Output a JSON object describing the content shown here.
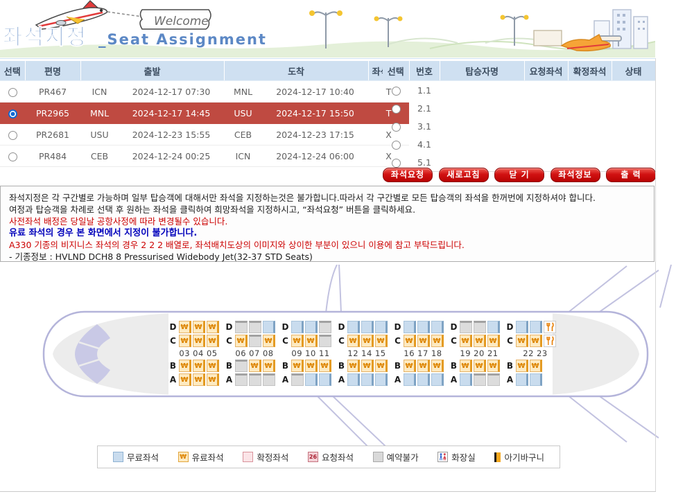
{
  "banner": {
    "title_ko": "좌석지정",
    "title_en": "_Seat Assignment",
    "welcome": "Welcome"
  },
  "flights": {
    "columns": {
      "select": "선택",
      "flight": "편명",
      "departure": "출발",
      "arrival": "도착",
      "seat_info": "좌석정보"
    },
    "rows": [
      {
        "flight": "PR467",
        "dep_city": "ICN",
        "dep_time": "2024-12-17 07:30",
        "arr_city": "MNL",
        "arr_time": "2024-12-17 10:40",
        "seat_info": "T",
        "selected": false
      },
      {
        "flight": "PR2965",
        "dep_city": "MNL",
        "dep_time": "2024-12-17 14:45",
        "arr_city": "USU",
        "arr_time": "2024-12-17 15:50",
        "seat_info": "T",
        "selected": true
      },
      {
        "flight": "PR2681",
        "dep_city": "USU",
        "dep_time": "2024-12-23 15:55",
        "arr_city": "CEB",
        "arr_time": "2024-12-23 17:15",
        "seat_info": "X",
        "selected": false
      },
      {
        "flight": "PR484",
        "dep_city": "CEB",
        "dep_time": "2024-12-24 00:25",
        "arr_city": "ICN",
        "arr_time": "2024-12-24 06:00",
        "seat_info": "X",
        "selected": false
      }
    ],
    "selected_row_color": "#bf4a41"
  },
  "passengers": {
    "columns": {
      "select": "선택",
      "number": "번호",
      "name": "탑승자명",
      "requested_seat": "요청좌석",
      "confirmed_seat": "확정좌석",
      "status": "상태"
    },
    "rows": [
      {
        "number": "1.1",
        "name": "",
        "requested_seat": "",
        "confirmed_seat": "",
        "status": ""
      },
      {
        "number": "2.1",
        "name": "",
        "requested_seat": "",
        "confirmed_seat": "",
        "status": ""
      },
      {
        "number": "3.1",
        "name": "",
        "requested_seat": "",
        "confirmed_seat": "",
        "status": ""
      },
      {
        "number": "4.1",
        "name": "",
        "requested_seat": "",
        "confirmed_seat": "",
        "status": ""
      },
      {
        "number": "5.1",
        "name": "",
        "requested_seat": "",
        "confirmed_seat": "",
        "status": ""
      }
    ]
  },
  "buttons": [
    {
      "id": "seat-request-button",
      "label": "좌석요청"
    },
    {
      "id": "refresh-button",
      "label": "새로고침"
    },
    {
      "id": "close-button",
      "label": "닫 기"
    },
    {
      "id": "seat-info-button",
      "label": "좌석정보"
    },
    {
      "id": "print-button",
      "label": "출 력"
    }
  ],
  "notice": {
    "lines": [
      {
        "text": "좌석지정은 각 구간별로 가능하며 일부 탑승객에 대해서만 좌석을 지정하는것은 불가합니다.따라서 각 구간별로 모든 탑승객의 좌석을 한꺼번에 지정하셔야 합니다.",
        "color": "black"
      },
      {
        "text": "여정과 탑승객을 차례로 선택 후 원하는 좌석을 클릭하여 희망좌석을 지정하시고, “좌석요청” 버튼을 클릭하세요.",
        "color": "black"
      },
      {
        "text": "사전좌석 배정은 당일날 공항사정에 따라 변경될수 있습니다.",
        "color": "red"
      },
      {
        "text": "유료 좌석의 경우 본 화면에서 지정이 불가합니다.",
        "color": "blue"
      },
      {
        "text": "A330 기종의 비지니스 좌석의 경우 2 2 2 배열로, 좌석배치도상의 이미지와 상이한 부분이 있으니 이용에 참고 부탁드립니다.",
        "color": "red"
      },
      {
        "text": "- 기종정보 : HVLND DCH8 8 Pressurised Widebody Jet(32-37 STD Seats)",
        "color": "black"
      }
    ]
  },
  "seat_map": {
    "paid_symbol": "₩",
    "groups": [
      {
        "numbers": "03 04 05",
        "D": [
          "P",
          "P",
          "P"
        ],
        "C": [
          "P",
          "P",
          "P"
        ],
        "B": [
          "P",
          "P",
          "P"
        ],
        "A": [
          "P",
          "P",
          "P"
        ],
        "lav_D": false,
        "lav_C": false
      },
      {
        "numbers": "06 07 08",
        "D": [
          "X",
          "X",
          "F"
        ],
        "C": [
          "P",
          "X",
          "P"
        ],
        "B": [
          "X",
          "P",
          "P"
        ],
        "A": [
          "X",
          "X",
          "X"
        ],
        "lav_D": false,
        "lav_C": false
      },
      {
        "numbers": "09 10 11",
        "D": [
          "F",
          "F",
          "X"
        ],
        "C": [
          "P",
          "P",
          "X"
        ],
        "B": [
          "P",
          "P",
          "P"
        ],
        "A": [
          "X",
          "F",
          "F"
        ],
        "lav_D": false,
        "lav_C": false
      },
      {
        "numbers": "12 14 15",
        "D": [
          "F",
          "F",
          "F"
        ],
        "C": [
          "P",
          "P",
          "P"
        ],
        "B": [
          "P",
          "P",
          "P"
        ],
        "A": [
          "F",
          "F",
          "F"
        ],
        "lav_D": false,
        "lav_C": false
      },
      {
        "numbers": "16 17 18",
        "D": [
          "F",
          "F",
          "F"
        ],
        "C": [
          "P",
          "P",
          "P"
        ],
        "B": [
          "P",
          "P",
          "P"
        ],
        "A": [
          "F",
          "F",
          "F"
        ],
        "lav_D": false,
        "lav_C": false
      },
      {
        "numbers": "19 20 21",
        "D": [
          "X",
          "X",
          "F"
        ],
        "C": [
          "P",
          "P",
          "P"
        ],
        "B": [
          "P",
          "P",
          "P"
        ],
        "A": [
          "F",
          "X",
          "X"
        ],
        "lav_D": false,
        "lav_C": false
      },
      {
        "numbers": "22 23",
        "D": [
          "F",
          "F"
        ],
        "C": [
          "P",
          "P"
        ],
        "B": [
          "P",
          "P"
        ],
        "A": [
          "F",
          "F"
        ],
        "lav_D": true,
        "lav_C": true
      }
    ]
  },
  "legend": {
    "items": [
      {
        "type": "free",
        "label": "무료좌석"
      },
      {
        "type": "paid",
        "label": "유료좌석",
        "symbol": "₩"
      },
      {
        "type": "confirmed",
        "label": "확정좌석"
      },
      {
        "type": "requested",
        "label": "요청좌석",
        "badge": "26"
      },
      {
        "type": "blocked",
        "label": "예약불가"
      },
      {
        "type": "lavatory",
        "label": "화장실"
      },
      {
        "type": "bassinet",
        "label": "아기바구니"
      }
    ]
  },
  "colors": {
    "seat_free": "#c9dcee",
    "seat_paid": "#fdeac1",
    "seat_blocked": "#dcdcdc",
    "selected_row": "#bf4a41",
    "button_red": "#c00d0d",
    "title_blue": "#5c88c5",
    "plane_outline": "#b4b4da"
  }
}
